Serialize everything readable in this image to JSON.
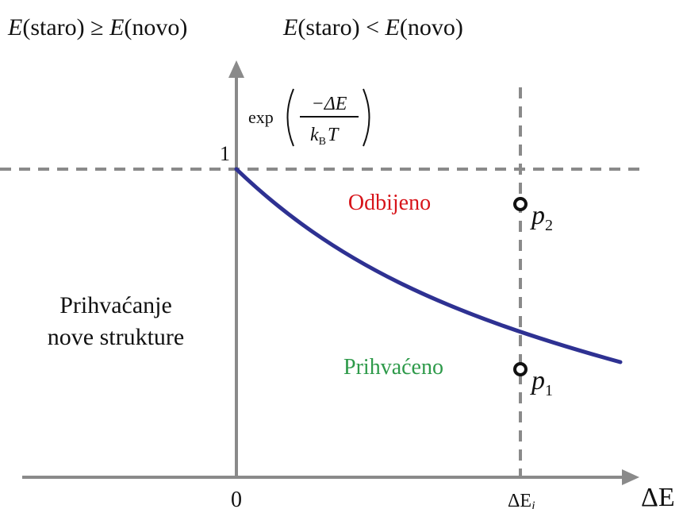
{
  "header": {
    "left_condition": {
      "e1": "E",
      "arg1": "(staro)",
      "op": " ≥ ",
      "e2": "E",
      "arg2": "(novo)"
    },
    "right_condition": {
      "e1": "E",
      "arg1": "(staro)",
      "op": " < ",
      "e2": "E",
      "arg2": "(novo)"
    }
  },
  "y_axis": {
    "exp_label": "exp",
    "numerator": "−ΔE",
    "denominator_k": "k",
    "denominator_sub": "B",
    "denominator_T": "T",
    "tick_one": "1"
  },
  "x_axis": {
    "label": "ΔE",
    "tick_zero": "0",
    "tick_delta": "ΔE",
    "tick_delta_sub": "i"
  },
  "regions": {
    "rejected": "Odbijeno",
    "accepted": "Prihvaćeno",
    "accept_new_line1": "Prihvaćanje",
    "accept_new_line2": "nove strukture"
  },
  "points": {
    "p1": {
      "letter": "p",
      "sub": "1",
      "level": 0.33
    },
    "p2": {
      "letter": "p",
      "sub": "2",
      "level": 0.87
    }
  },
  "colors": {
    "axis": "#8a8a8a",
    "curve": "#2e3192",
    "rejected": "#d7141a",
    "accepted": "#2e9a4a",
    "text": "#111111"
  }
}
